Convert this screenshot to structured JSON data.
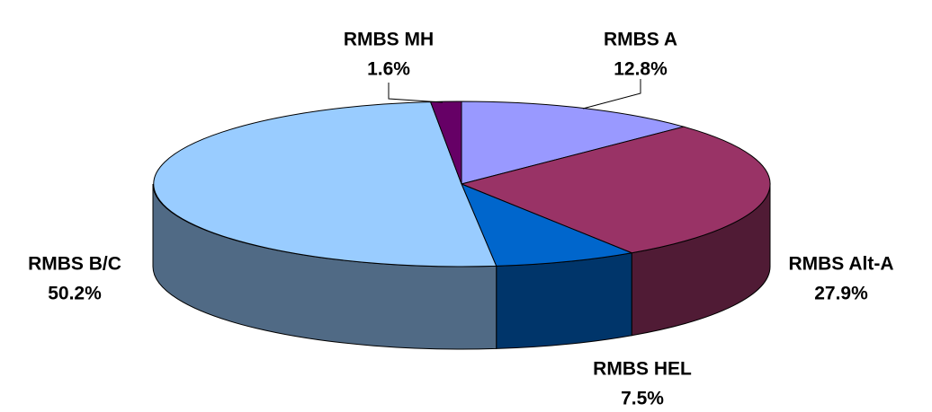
{
  "chart_data": {
    "type": "pie3d",
    "categories": [
      "RMBS A",
      "RMBS Alt-A",
      "RMBS HEL",
      "RMBS B/C",
      "RMBS MH"
    ],
    "values": [
      12.8,
      27.9,
      7.5,
      50.2,
      1.6
    ],
    "value_labels": [
      "12.8%",
      "27.9%",
      "7.5%",
      "50.2%",
      "1.6%"
    ],
    "colors": [
      "#9999ff",
      "#993366",
      "#0066cc",
      "#99ccff",
      "#660066"
    ]
  }
}
